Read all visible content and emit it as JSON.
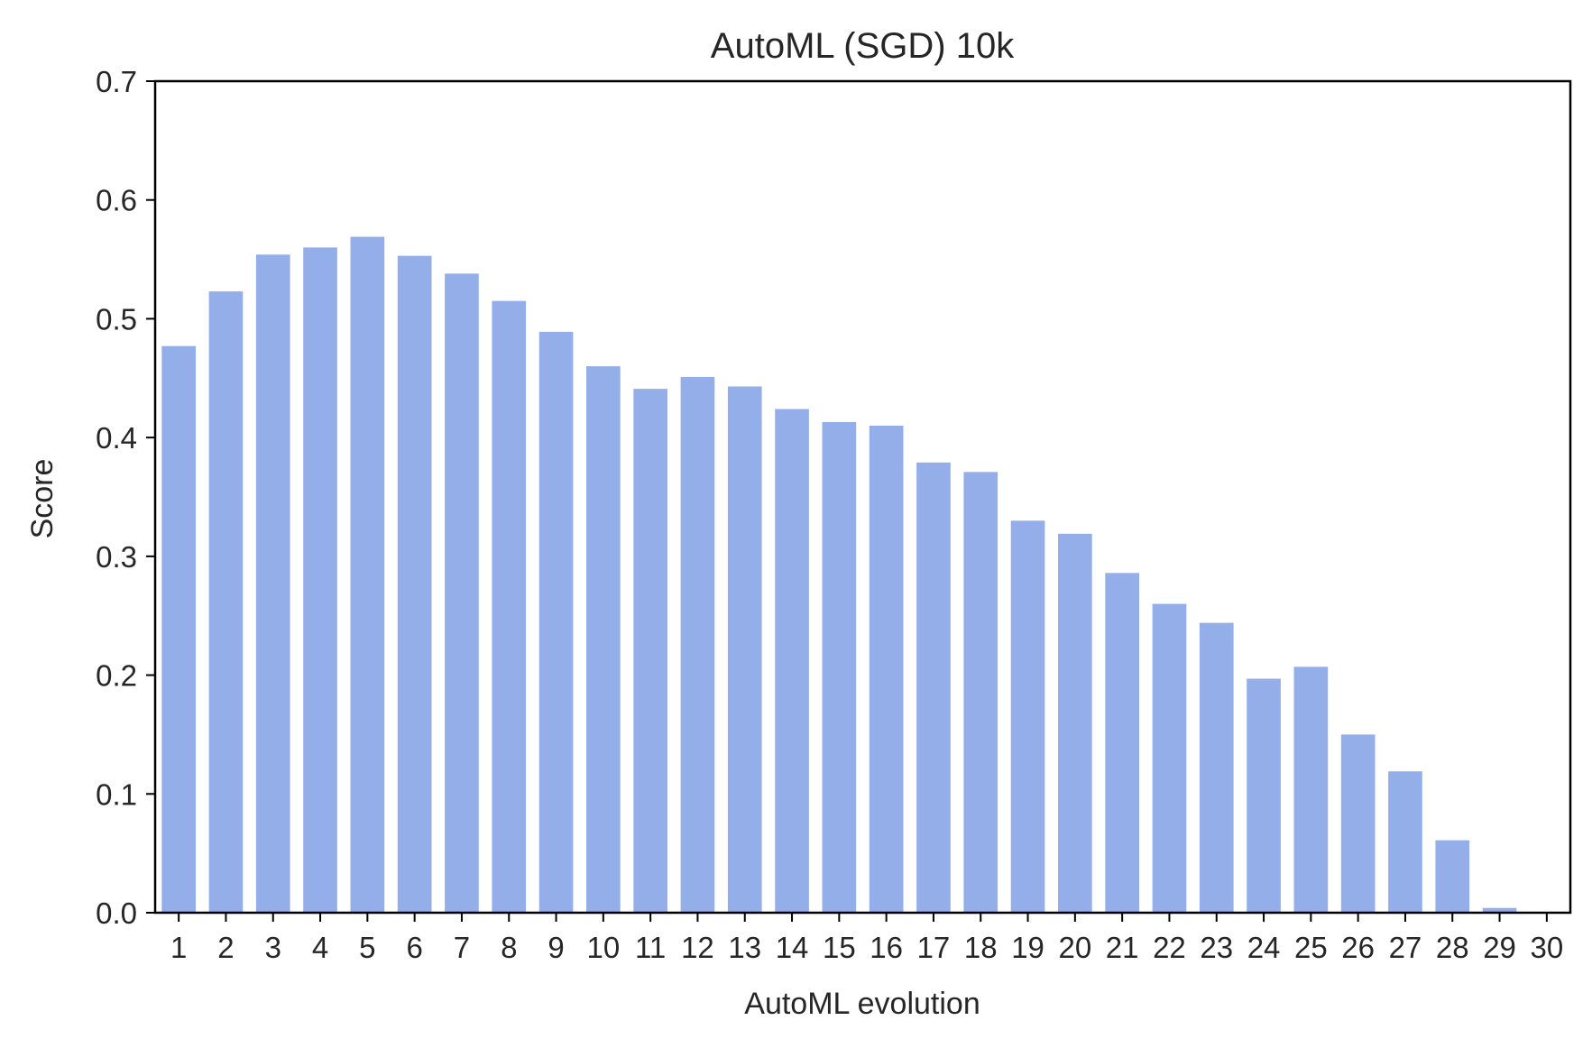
{
  "chart_data": {
    "type": "bar",
    "title": "AutoML (SGD) 10k",
    "xlabel": "AutoML evolution",
    "ylabel": "Score",
    "categories": [
      "1",
      "2",
      "3",
      "4",
      "5",
      "6",
      "7",
      "8",
      "9",
      "10",
      "11",
      "12",
      "13",
      "14",
      "15",
      "16",
      "17",
      "18",
      "19",
      "20",
      "21",
      "22",
      "23",
      "24",
      "25",
      "26",
      "27",
      "28",
      "29",
      "30"
    ],
    "values": [
      0.477,
      0.523,
      0.554,
      0.56,
      0.569,
      0.553,
      0.538,
      0.515,
      0.489,
      0.46,
      0.441,
      0.451,
      0.443,
      0.424,
      0.413,
      0.41,
      0.379,
      0.371,
      0.33,
      0.319,
      0.286,
      0.26,
      0.244,
      0.197,
      0.207,
      0.15,
      0.119,
      0.061,
      0.004,
      0.0
    ],
    "ylim": [
      0,
      0.7
    ],
    "yticks": [
      "0.0",
      "0.1",
      "0.2",
      "0.3",
      "0.4",
      "0.5",
      "0.6",
      "0.7"
    ],
    "bar_color": "#93aee9",
    "grid": false,
    "legend": "none"
  }
}
